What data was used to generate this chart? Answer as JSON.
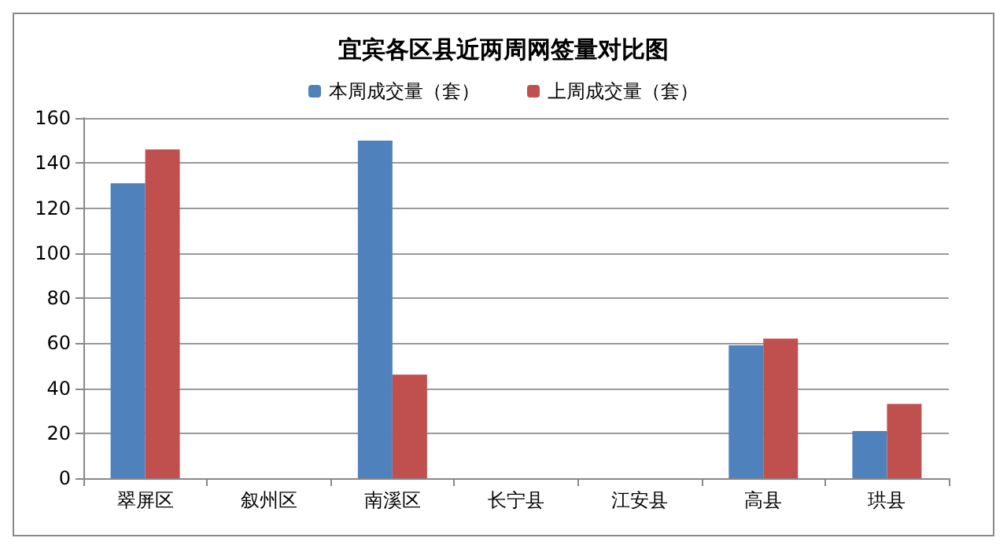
{
  "chart_data": {
    "type": "bar",
    "title": "宜宾各区县近两周网签量对比图",
    "categories": [
      "翠屏区",
      "叙州区",
      "南溪区",
      "长宁县",
      "江安县",
      "高县",
      "珙县"
    ],
    "series": [
      {
        "name": "本周成交量（套）",
        "color": "#4f81bd",
        "values": [
          131,
          0,
          150,
          0,
          0,
          59,
          21
        ]
      },
      {
        "name": "上周成交量（套）",
        "color": "#c0504d",
        "values": [
          146,
          0,
          46,
          0,
          0,
          62,
          33
        ]
      }
    ],
    "ylim": [
      0,
      160
    ],
    "yticks": [
      0,
      20,
      40,
      60,
      80,
      100,
      120,
      140,
      160
    ],
    "grid": "y",
    "legend": "top"
  }
}
